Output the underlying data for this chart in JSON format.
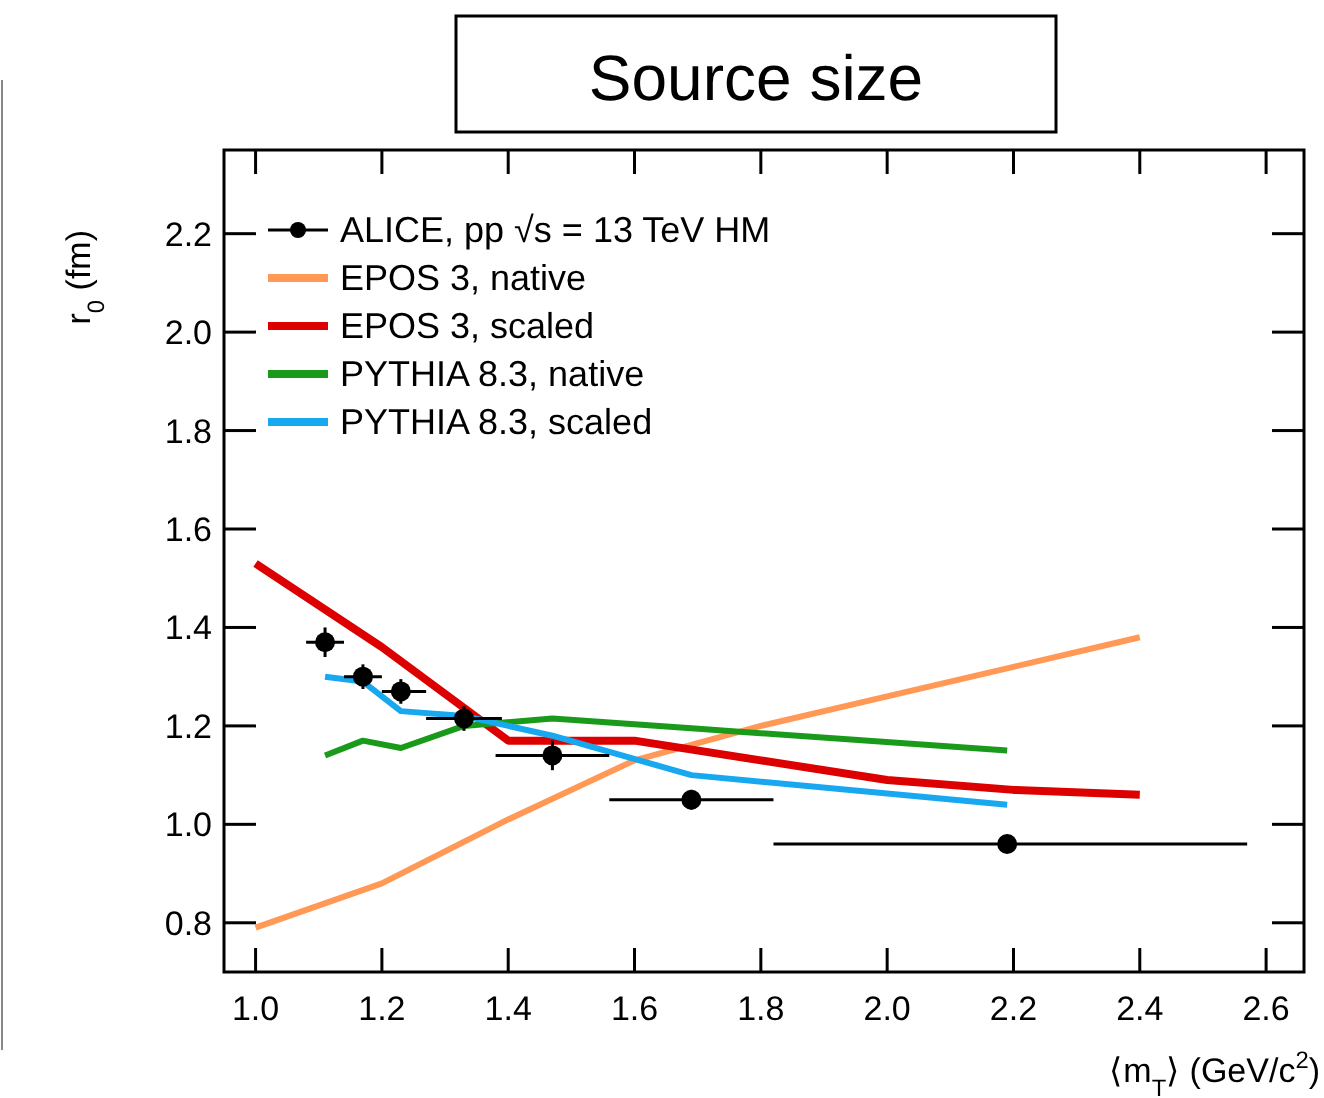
{
  "chart_data": {
    "type": "line",
    "title": "Source size",
    "xlabel": "⟨m$_{T}$⟩ (GeV/c$^{2}$)",
    "ylabel": "r$_{0}$ (fm)",
    "xlim": [
      0.95,
      2.66
    ],
    "ylim": [
      0.7,
      2.37
    ],
    "xticks": [
      {
        "value": 1.0,
        "label": "1.0"
      },
      1.2,
      1.4,
      1.6,
      1.8,
      {
        "value": 2.0,
        "label": "2.0"
      },
      2.2,
      2.4,
      2.6
    ],
    "yticks": [
      0.8,
      {
        "value": 1.0,
        "label": "1.0"
      },
      1.2,
      1.4,
      1.6,
      1.8,
      {
        "value": 2.0,
        "label": "2.0"
      },
      2.2
    ],
    "legend": "top left",
    "grid": false,
    "series": [
      {
        "name": "ALICE, pp √s = 13 TeV HM",
        "type": "scatter",
        "marker": "circle",
        "color": "#000000",
        "x": [
          1.11,
          1.17,
          1.23,
          1.33,
          1.47,
          1.69,
          2.19
        ],
        "values": [
          1.37,
          1.3,
          1.27,
          1.215,
          1.14,
          1.05,
          0.96
        ],
        "errors": [
          0.03,
          0.025,
          0.025,
          0.025,
          0.03,
          0.02,
          0.015
        ],
        "xerrors": [
          [
            1.08,
            1.14
          ],
          [
            1.14,
            1.2
          ],
          [
            1.2,
            1.27
          ],
          [
            1.27,
            1.39
          ],
          [
            1.38,
            1.56
          ],
          [
            1.56,
            1.82
          ],
          [
            1.82,
            2.57
          ]
        ]
      },
      {
        "name": "EPOS 3, native",
        "color": "#ff9955",
        "x": [
          1.0,
          1.2,
          1.4,
          1.6,
          1.8,
          2.0,
          2.2,
          2.4
        ],
        "values": [
          0.79,
          0.88,
          1.01,
          1.13,
          1.2,
          1.26,
          1.32,
          1.38
        ]
      },
      {
        "name": "EPOS 3, scaled",
        "color": "#dd0000",
        "x": [
          1.0,
          1.2,
          1.4,
          1.6,
          1.8,
          2.0,
          2.2,
          2.4
        ],
        "values": [
          1.53,
          1.36,
          1.17,
          1.17,
          1.13,
          1.09,
          1.07,
          1.06
        ]
      },
      {
        "name": "PYTHIA 8.3, native",
        "color": "#1a9a1a",
        "x": [
          1.11,
          1.17,
          1.23,
          1.33,
          1.47,
          1.69,
          2.19
        ],
        "values": [
          1.14,
          1.17,
          1.155,
          1.2,
          1.215,
          1.195,
          1.15
        ]
      },
      {
        "name": "PYTHIA 8.3, scaled",
        "color": "#18a8f0",
        "x": [
          1.11,
          1.17,
          1.23,
          1.33,
          1.47,
          1.69,
          2.19
        ],
        "values": [
          1.3,
          1.29,
          1.23,
          1.22,
          1.18,
          1.1,
          1.04
        ]
      }
    ]
  }
}
